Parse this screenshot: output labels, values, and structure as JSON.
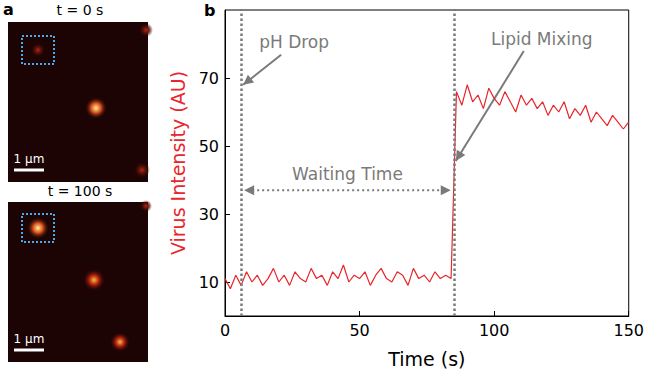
{
  "panel_a": {
    "label": "a",
    "images": [
      {
        "time_label": "t = 0 s",
        "scale_bar": "1 μm"
      },
      {
        "time_label": "t = 100 s",
        "scale_bar": "1 μm"
      }
    ]
  },
  "chart_data": {
    "type": "line",
    "panel_label": "b",
    "x_label": "Time (s)",
    "y_label": "Virus Intensity (AU)",
    "color": "#e8262b",
    "x": [
      0,
      2,
      4,
      6,
      8,
      10,
      12,
      14,
      16,
      18,
      20,
      22,
      24,
      26,
      28,
      30,
      32,
      34,
      36,
      38,
      40,
      42,
      44,
      46,
      48,
      50,
      52,
      54,
      56,
      58,
      60,
      62,
      64,
      66,
      68,
      70,
      72,
      74,
      76,
      78,
      80,
      82,
      84,
      86,
      88,
      90,
      92,
      94,
      96,
      98,
      100,
      102,
      104,
      106,
      108,
      110,
      112,
      114,
      116,
      118,
      120,
      122,
      124,
      126,
      128,
      130,
      132,
      134,
      136,
      138,
      140,
      142,
      144,
      146,
      148,
      150
    ],
    "values": [
      11,
      8,
      12,
      9,
      13,
      10,
      12,
      9,
      11,
      14,
      10,
      12,
      9,
      13,
      11,
      10,
      14,
      11,
      12,
      9,
      13,
      11,
      15,
      10,
      12,
      11,
      13,
      9,
      12,
      14,
      11,
      10,
      13,
      12,
      9,
      14,
      11,
      12,
      10,
      13,
      11,
      12,
      11,
      66,
      62,
      68,
      63,
      65,
      61,
      67,
      64,
      62,
      66,
      63,
      60,
      65,
      62,
      64,
      61,
      63,
      59,
      62,
      60,
      63,
      58,
      61,
      59,
      62,
      57,
      60,
      58,
      56,
      59,
      57,
      55,
      57
    ],
    "xlim": [
      0,
      150
    ],
    "xticks": [
      0,
      50,
      100,
      150
    ],
    "ylim": [
      0,
      90
    ],
    "yticks": [
      10,
      30,
      50,
      70
    ],
    "grid": false,
    "annotations": [
      {
        "text": "pH Drop",
        "x": 6,
        "y": 68
      },
      {
        "text": "Lipid Mixing",
        "x": 85,
        "y": 45
      },
      {
        "text": "Waiting Time",
        "x_start": 6,
        "x_end": 85,
        "y": 37
      }
    ]
  }
}
